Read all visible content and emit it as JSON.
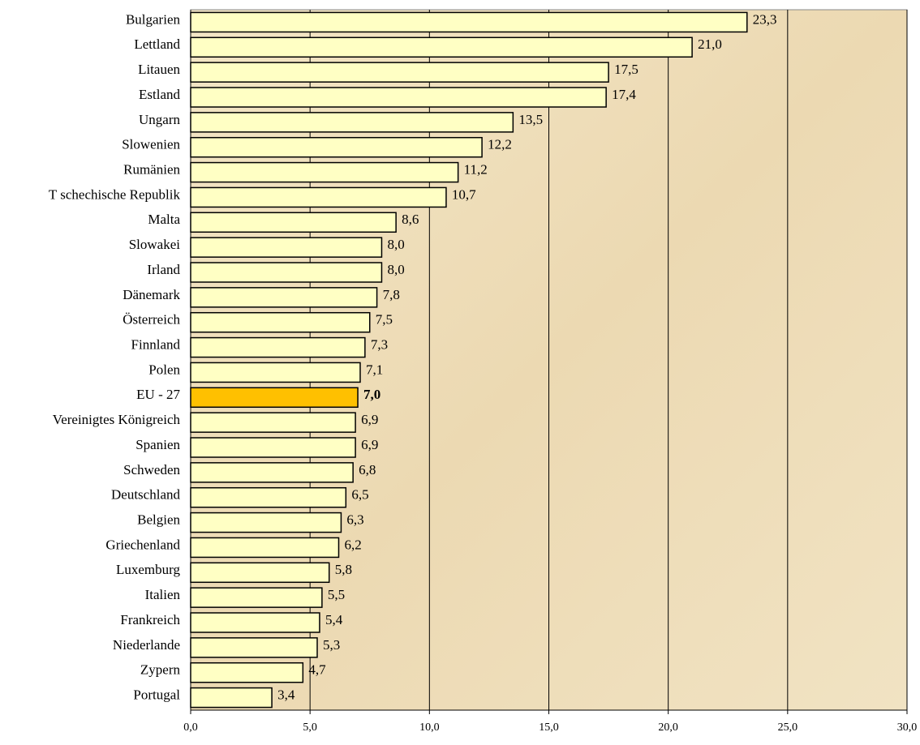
{
  "chart_data": {
    "type": "hbar",
    "categories": [
      "Bulgarien",
      "Lettland",
      "Litauen",
      "Estland",
      "Ungarn",
      "Slowenien",
      "Rumänien",
      "T schechische Republik",
      "Malta",
      "Slowakei",
      "Irland",
      "Dänemark",
      "Österreich",
      "Finnland",
      "Polen",
      "EU - 27",
      "Vereinigtes Königreich",
      "Spanien",
      "Schweden",
      "Deutschland",
      "Belgien",
      "Griechenland",
      "Luxemburg",
      "Italien",
      "Frankreich",
      "Niederlande",
      "Zypern",
      "Portugal"
    ],
    "values": [
      23.3,
      21.0,
      17.5,
      17.4,
      13.5,
      12.2,
      11.2,
      10.7,
      8.6,
      8.0,
      8.0,
      7.8,
      7.5,
      7.3,
      7.1,
      7.0,
      6.9,
      6.9,
      6.8,
      6.5,
      6.3,
      6.2,
      5.8,
      5.5,
      5.4,
      5.3,
      4.7,
      3.4
    ],
    "value_labels": [
      "23,3",
      "21,0",
      "17,5",
      "17,4",
      "13,5",
      "12,2",
      "11,2",
      "10,7",
      "8,6",
      "8,0",
      "8,0",
      "7,8",
      "7,5",
      "7,3",
      "7,1",
      "7,0",
      "6,9",
      "6,9",
      "6,8",
      "6,5",
      "6,3",
      "6,2",
      "5,8",
      "5,5",
      "5,4",
      "5,3",
      "4,7",
      "3,4"
    ],
    "colors": [
      "#ffffc4",
      "#ffffc4",
      "#ffffc4",
      "#ffffc4",
      "#ffffc4",
      "#ffffc4",
      "#ffffc4",
      "#ffffc4",
      "#ffffc4",
      "#ffffc4",
      "#ffffc4",
      "#ffffc4",
      "#ffffc4",
      "#ffffc4",
      "#ffffc4",
      "#ffc000",
      "#ffffc4",
      "#ffffc4",
      "#ffffc4",
      "#ffffc4",
      "#ffffc4",
      "#ffffc4",
      "#ffffc4",
      "#ffffc4",
      "#ffffc4",
      "#ffffc4",
      "#ffffc4",
      "#ffffc4"
    ],
    "xlim": [
      0,
      30
    ],
    "xticks": [
      {
        "value": 0,
        "label": "0,0"
      },
      {
        "value": 5,
        "label": "5,0"
      },
      {
        "value": 10,
        "label": "10,0"
      },
      {
        "value": 15,
        "label": "15,0"
      },
      {
        "value": 20,
        "label": "20,0"
      },
      {
        "value": 25,
        "label": "25,0"
      },
      {
        "value": 30,
        "label": "30,0"
      }
    ],
    "grid": true
  }
}
